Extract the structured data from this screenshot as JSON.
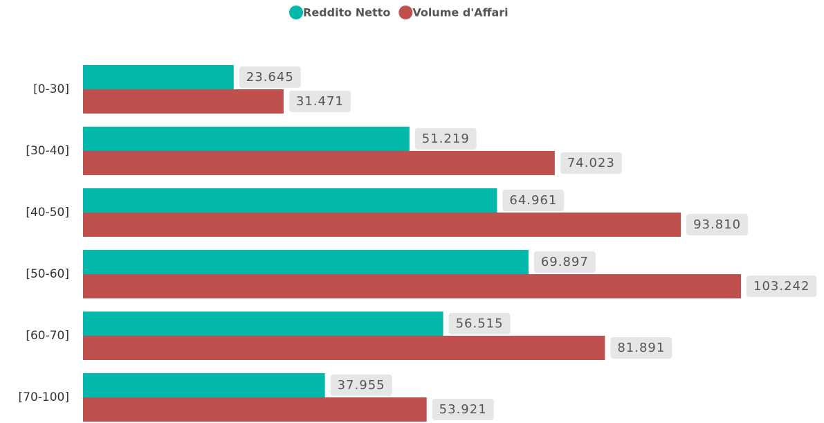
{
  "chart_data": {
    "type": "bar",
    "orientation": "horizontal",
    "categories": [
      "[0-30]",
      "[30-40]",
      "[40-50]",
      "[50-60]",
      "[60-70]",
      "[70-100]"
    ],
    "series": [
      {
        "name": "Reddito Netto",
        "color": "#01b8aa",
        "values": [
          23645,
          51219,
          64961,
          69897,
          56515,
          37955
        ],
        "value_labels": [
          "23.645",
          "51.219",
          "64.961",
          "69.897",
          "56.515",
          "37.955"
        ]
      },
      {
        "name": "Volume d'Affari",
        "color": "#c0504d",
        "values": [
          31471,
          74023,
          93810,
          103242,
          81891,
          53921
        ],
        "value_labels": [
          "31.471",
          "74.023",
          "93.810",
          "103.242",
          "81.891",
          "53.921"
        ]
      }
    ],
    "legend": "top"
  }
}
